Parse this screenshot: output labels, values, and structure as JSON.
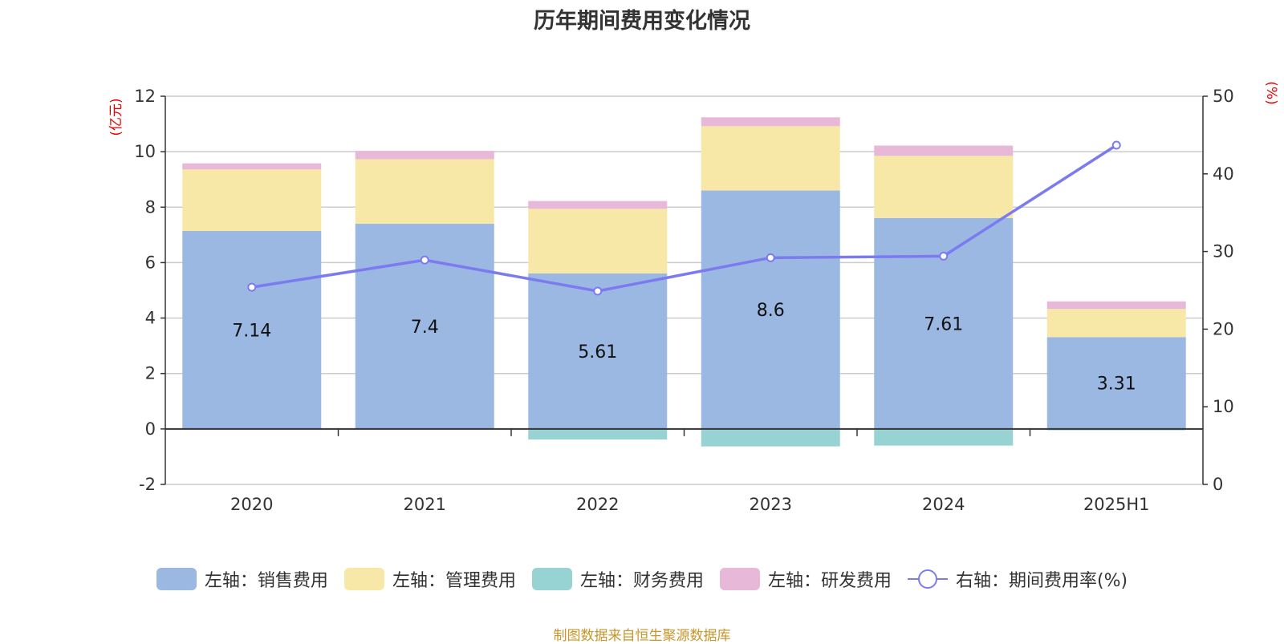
{
  "chart_data": {
    "type": "bar",
    "title": "历年期间费用变化情况",
    "categories": [
      "2020",
      "2021",
      "2022",
      "2023",
      "2024",
      "2025H1"
    ],
    "series": [
      {
        "name": "左轴：销售费用",
        "axis": "left",
        "color": "#9bb8e3",
        "values": [
          7.14,
          7.4,
          5.61,
          8.6,
          7.61,
          3.31
        ]
      },
      {
        "name": "左轴：管理费用",
        "axis": "left",
        "color": "#f8e8a8",
        "values": [
          2.22,
          2.33,
          2.33,
          2.32,
          2.24,
          1.02
        ]
      },
      {
        "name": "左轴：财务费用",
        "axis": "left",
        "color": "#97d3d3",
        "values": [
          0.0,
          0.0,
          -0.38,
          -0.63,
          -0.6,
          -0.05
        ]
      },
      {
        "name": "左轴：研发费用",
        "axis": "left",
        "color": "#e7b8d8",
        "values": [
          0.22,
          0.3,
          0.28,
          0.32,
          0.37,
          0.27
        ]
      }
    ],
    "line_series": {
      "name": "右轴：期间费用率(%)",
      "axis": "right",
      "color": "#7b7bef",
      "values": [
        25.4,
        28.9,
        24.9,
        29.2,
        29.4,
        43.7
      ]
    },
    "data_labels": [
      "7.14",
      "7.4",
      "5.61",
      "8.6",
      "7.61",
      "3.31"
    ],
    "left_axis": {
      "unit": "(亿元)",
      "ticks": [
        "-2",
        "0",
        "2",
        "4",
        "6",
        "8",
        "10",
        "12"
      ],
      "min": -2,
      "max": 12
    },
    "right_axis": {
      "unit": "(%)",
      "ticks": [
        "0",
        "10",
        "20",
        "30",
        "40",
        "50"
      ],
      "min": 0,
      "max": 50
    },
    "grid": true,
    "legend_position": "bottom"
  },
  "footer": {
    "source": "制图数据来自恒生聚源数据库"
  }
}
